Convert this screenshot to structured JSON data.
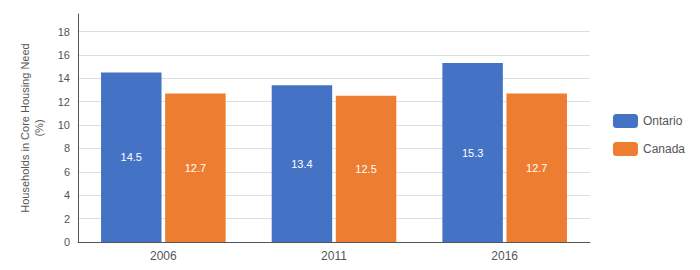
{
  "chart_data": {
    "type": "bar",
    "categories": [
      "2006",
      "2011",
      "2016"
    ],
    "series": [
      {
        "name": "Ontario",
        "color": "#4472C4",
        "values": [
          14.5,
          13.4,
          15.3
        ]
      },
      {
        "name": "Canada",
        "color": "#ED7D31",
        "values": [
          12.7,
          12.5,
          12.7
        ]
      }
    ],
    "ylabel": "Households in Core Housing Need\n(%)",
    "ylim": [
      0,
      19.5
    ],
    "yticks": [
      0,
      2,
      4,
      6,
      8,
      10,
      12,
      14,
      16,
      18
    ],
    "grid": true,
    "legend": "right",
    "data_labels": true
  }
}
